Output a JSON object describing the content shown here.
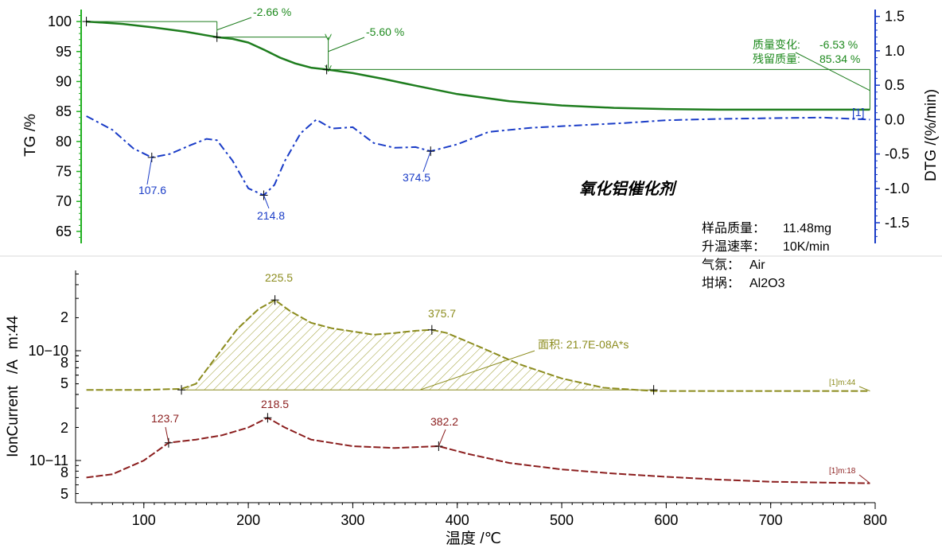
{
  "chart_data": [
    {
      "type": "line",
      "title": "氧化铝催化剂",
      "xlabel": "温度 /℃",
      "xlim": [
        40,
        800
      ],
      "x_ticks": [
        "100",
        "200",
        "300",
        "400",
        "500",
        "600",
        "700",
        "800"
      ],
      "y_left": {
        "label": "TG /%",
        "ylim": [
          63,
          102
        ],
        "ticks": [
          "100",
          "95",
          "90",
          "85",
          "80",
          "75",
          "70",
          "65"
        ],
        "color": "#22b022"
      },
      "y_right": {
        "label": "DTG /(%/min)",
        "ylim": [
          -1.8,
          1.6
        ],
        "ticks": [
          "1.5",
          "1.0",
          "0.5",
          "0.0",
          "-0.5",
          "-1.0",
          "-1.5"
        ],
        "color": "#1a3cc7"
      },
      "series": [
        {
          "axis": "left",
          "color": "#1e7d1e",
          "x": [
            45,
            80,
            110,
            140,
            170,
            185,
            200,
            215,
            230,
            245,
            260,
            275,
            300,
            330,
            360,
            400,
            450,
            500,
            550,
            600,
            650,
            700,
            750,
            795
          ],
          "values": [
            100,
            99.6,
            99.0,
            98.3,
            97.4,
            97.1,
            96.5,
            95.3,
            94.0,
            93.0,
            92.3,
            92.0,
            91.4,
            90.4,
            89.3,
            87.9,
            86.7,
            86.0,
            85.6,
            85.4,
            85.3,
            85.3,
            85.3,
            85.3
          ]
        },
        {
          "axis": "right",
          "color": "#1a3cc7",
          "x": [
            45,
            70,
            90,
            107.6,
            125,
            145,
            160,
            170,
            185,
            200,
            214.8,
            225,
            235,
            250,
            265,
            280,
            300,
            320,
            340,
            360,
            374.5,
            400,
            430,
            470,
            520,
            560,
            600,
            650,
            700,
            750,
            795
          ],
          "values": [
            0.05,
            -0.15,
            -0.42,
            -0.55,
            -0.5,
            -0.37,
            -0.28,
            -0.3,
            -0.6,
            -1.0,
            -1.1,
            -0.95,
            -0.6,
            -0.2,
            0.0,
            -0.13,
            -0.11,
            -0.34,
            -0.41,
            -0.4,
            -0.46,
            -0.36,
            -0.18,
            -0.12,
            -0.08,
            -0.05,
            -0.01,
            0.01,
            0.02,
            0.03,
            0.0
          ]
        }
      ],
      "annotations": {
        "step1": "-2.66 %",
        "step2": "-5.60 %",
        "mass_change_label": "质量变化:",
        "mass_change_value": "-6.53 %",
        "residual_label": "残留质量:",
        "residual_value": "85.34 %",
        "tag": "[1]",
        "peaks": [
          "107.6",
          "214.8",
          "374.5"
        ]
      }
    },
    {
      "type": "line",
      "xlabel": "温度 /℃",
      "xlim": [
        40,
        800
      ],
      "ylabel": "IonCurrent /A",
      "y_scale": "log",
      "series": [
        {
          "name": "[1]m:44",
          "color": "#8c8c1e",
          "x": [
            45,
            100,
            136,
            150,
            170,
            190,
            210,
            225.5,
            240,
            260,
            280,
            300,
            320,
            340,
            360,
            375.7,
            390,
            420,
            460,
            500,
            540,
            580,
            588,
            650,
            700,
            750,
            795
          ],
          "values": [
            4.4e-11,
            4.4e-11,
            4.5e-11,
            5e-11,
            9e-11,
            1.6e-10,
            2.4e-10,
            2.9e-10,
            2.3e-10,
            1.8e-10,
            1.6e-10,
            1.5e-10,
            1.4e-10,
            1.45e-10,
            1.52e-10,
            1.55e-10,
            1.45e-10,
            1.1e-10,
            7.5e-11,
            5.6e-11,
            4.6e-11,
            4.35e-11,
            4.3e-11,
            4.3e-11,
            4.3e-11,
            4.3e-11,
            4.3e-11
          ]
        },
        {
          "name": "[1]m:18",
          "color": "#8b1e1e",
          "x": [
            45,
            70,
            100,
            123.7,
            150,
            175,
            200,
            218.5,
            235,
            260,
            300,
            340,
            382.2,
            410,
            450,
            500,
            550,
            600,
            650,
            700,
            750,
            795
          ],
          "values": [
            7e-12,
            7.5e-12,
            1e-11,
            1.45e-11,
            1.55e-11,
            1.7e-11,
            2e-11,
            2.45e-11,
            2e-11,
            1.55e-11,
            1.35e-11,
            1.3e-11,
            1.35e-11,
            1.15e-11,
            9.5e-12,
            8.3e-12,
            7.6e-12,
            7.1e-12,
            6.7e-12,
            6.4e-12,
            6.3e-12,
            6.2e-12
          ]
        }
      ],
      "annotations": {
        "m44_peaks": [
          "225.5",
          "375.7"
        ],
        "area": "面积: 21.7E-08A*s",
        "m18_peaks": [
          "123.7",
          "218.5",
          "382.2"
        ],
        "m44_end": "[1]m:44",
        "m18_end": "[1]m:18",
        "ylabel_top": "m:44",
        "ylabel_mid": "/A",
        "ylabel_bottom": "IonCurrent",
        "decade_labels": [
          "10−10",
          "10−11"
        ],
        "minor_labels_upper": [
          "2",
          "8",
          "5"
        ],
        "minor_labels_lower": [
          "2",
          "8",
          "5"
        ]
      }
    }
  ],
  "info": [
    {
      "label": "样品质量：",
      "value": "11.48mg"
    },
    {
      "label": "升温速率：",
      "value": "10K/min"
    },
    {
      "label": "气氛：",
      "value": "Air"
    },
    {
      "label": "坩埚：",
      "value": "Al2O3"
    }
  ]
}
